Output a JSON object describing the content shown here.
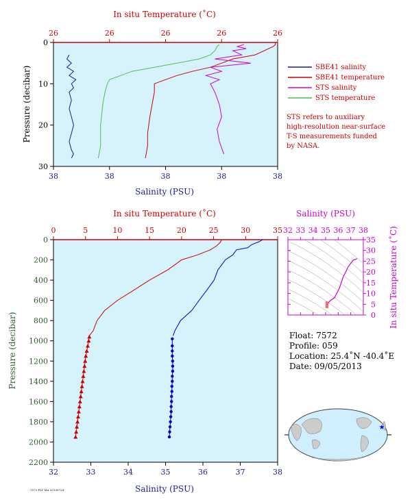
{
  "chart_data": [
    {
      "id": "near_surface",
      "type": "line",
      "top_axis_label": "In situ Temperature (˚C)",
      "top_ticks": [
        "26",
        "26",
        "26",
        "26",
        "26"
      ],
      "bottom_axis_label": "Salinity (PSU)",
      "bottom_ticks": [
        "38",
        "38",
        "38",
        "38",
        "38"
      ],
      "ylabel": "Pressure (decibar)",
      "y_ticks": [
        "0",
        "10",
        "20",
        "30"
      ],
      "ylim": [
        0,
        30
      ],
      "legend": [
        {
          "name": "SBE41 salinity",
          "color": "#1a1a99"
        },
        {
          "name": "SBE41 temperature",
          "color": "#cc0000"
        },
        {
          "name": "STS salinity",
          "color": "#cc00cc"
        },
        {
          "name": "STS temperature",
          "color": "#55bb55"
        }
      ],
      "note": [
        "STS refers to auxiliary",
        "high-resolution near-surface",
        "T-S measurements funded",
        "by NASA."
      ],
      "series": [
        {
          "name": "SBE41 salinity",
          "x_frac": [
            0.07,
            0.06,
            0.08,
            0.06,
            0.09,
            0.07,
            0.1,
            0.08,
            0.09,
            0.07,
            0.08,
            0.07,
            0.08,
            0.09,
            0.08,
            0.07,
            0.08,
            0.09,
            0.08
          ],
          "y": [
            3,
            4,
            5,
            6,
            7,
            8,
            9,
            10,
            11,
            12,
            14,
            16,
            18,
            20,
            22,
            24,
            26,
            27,
            28
          ]
        },
        {
          "name": "SBE41 temperature",
          "x_frac": [
            0.99,
            0.99,
            0.98,
            0.9,
            0.8,
            0.75,
            0.7,
            0.62,
            0.55,
            0.5,
            0.45,
            0.45,
            0.44,
            0.43,
            0.42,
            0.42,
            0.41
          ],
          "y": [
            0,
            0.5,
            1,
            3,
            4,
            5,
            6,
            7,
            8,
            9,
            10,
            12,
            15,
            18,
            22,
            25,
            28
          ]
        },
        {
          "name": "STS salinity",
          "x_frac": [
            0.85,
            0.82,
            0.86,
            0.8,
            0.84,
            0.72,
            0.88,
            0.7,
            0.75,
            0.68,
            0.74,
            0.7,
            0.72,
            0.74,
            0.75,
            0.73,
            0.74,
            0.76
          ],
          "y": [
            0.5,
            1,
            1.5,
            2,
            3,
            4,
            5,
            6,
            7,
            8,
            9,
            10,
            12,
            15,
            18,
            21,
            24,
            27
          ]
        },
        {
          "name": "STS temperature",
          "x_frac": [
            0.74,
            0.73,
            0.72,
            0.7,
            0.65,
            0.55,
            0.45,
            0.35,
            0.3,
            0.25,
            0.24,
            0.23,
            0.22,
            0.21,
            0.21,
            0.2
          ],
          "y": [
            0.5,
            1,
            2,
            3,
            4,
            5,
            6,
            7,
            8,
            9,
            10,
            12,
            15,
            20,
            25,
            28
          ]
        }
      ]
    },
    {
      "id": "full_profile",
      "type": "line",
      "top_axis_label": "In situ Temperature (˚C)",
      "top_ticks": [
        "0",
        "5",
        "10",
        "15",
        "20",
        "25",
        "30",
        "35"
      ],
      "xlim_temperature": [
        0,
        35
      ],
      "bottom_axis_label": "Salinity (PSU)",
      "bottom_ticks": [
        "32",
        "33",
        "34",
        "35",
        "36",
        "37",
        "38"
      ],
      "xlim_salinity": [
        32,
        38
      ],
      "ylabel": "Pressure (decibar)",
      "y_ticks": [
        "0",
        "200",
        "400",
        "600",
        "800",
        "1000",
        "1200",
        "1400",
        "1600",
        "1800",
        "2000",
        "2200"
      ],
      "ylim": [
        0,
        2200
      ],
      "series": [
        {
          "name": "Temperature",
          "color": "#cc0000",
          "pressure": [
            0,
            10,
            30,
            60,
            100,
            150,
            200,
            300,
            400,
            500,
            600,
            700,
            800,
            900,
            950
          ],
          "temperature": [
            26.2,
            26.2,
            26.0,
            25.5,
            24.5,
            22.5,
            20.0,
            17.8,
            15.0,
            12.5,
            10.0,
            8.0,
            6.8,
            6.2,
            5.6
          ]
        },
        {
          "name": "Temperature markers",
          "color": "#cc0000",
          "marker": "triangle",
          "pressure": [
            960,
            1000,
            1050,
            1100,
            1150,
            1200,
            1250,
            1300,
            1350,
            1400,
            1450,
            1500,
            1550,
            1600,
            1650,
            1700,
            1750,
            1800,
            1850,
            1900,
            1950
          ],
          "temperature": [
            5.6,
            5.5,
            5.35,
            5.2,
            5.05,
            4.95,
            4.85,
            4.75,
            4.65,
            4.55,
            4.45,
            4.35,
            4.25,
            4.15,
            4.05,
            3.95,
            3.85,
            3.75,
            3.65,
            3.55,
            3.45
          ]
        },
        {
          "name": "Salinity",
          "color": "#0000cc",
          "pressure": [
            0,
            20,
            50,
            80,
            100,
            150,
            200,
            300,
            400,
            500,
            600,
            700,
            800,
            900,
            950
          ],
          "salinity": [
            37.6,
            37.5,
            37.3,
            37.2,
            36.9,
            36.8,
            36.6,
            36.4,
            36.3,
            36.1,
            35.9,
            35.7,
            35.4,
            35.25,
            35.2
          ]
        },
        {
          "name": "Salinity markers",
          "color": "#0000cc",
          "marker": "dot",
          "pressure": [
            980,
            1050,
            1100,
            1150,
            1200,
            1250,
            1300,
            1350,
            1400,
            1450,
            1500,
            1550,
            1600,
            1650,
            1700,
            1750,
            1800,
            1850,
            1900,
            1950
          ],
          "salinity": [
            35.18,
            35.18,
            35.18,
            35.18,
            35.19,
            35.19,
            35.19,
            35.18,
            35.18,
            35.17,
            35.17,
            35.16,
            35.16,
            35.15,
            35.15,
            35.14,
            35.13,
            35.12,
            35.11,
            35.1
          ]
        }
      ]
    },
    {
      "id": "ts_diagram",
      "type": "scatter",
      "top_axis_label": "Salinity (PSU)",
      "x_ticks": [
        "32",
        "33",
        "34",
        "35",
        "36",
        "37",
        "38"
      ],
      "xlim": [
        32,
        38
      ],
      "right_axis_label": "In situ Temperature (˚C)",
      "y_ticks": [
        "0",
        "5",
        "10",
        "15",
        "20",
        "25",
        "30",
        "35"
      ],
      "ylim": [
        0,
        35
      ],
      "series": [
        {
          "name": "T-S",
          "color": "#cc00cc",
          "salinity": [
            35.1,
            35.15,
            35.2,
            35.4,
            35.7,
            36.1,
            36.4,
            36.6,
            36.8,
            37.2,
            37.5
          ],
          "temperature": [
            3.5,
            4.5,
            5.6,
            6.8,
            8.0,
            12.5,
            17.8,
            20.0,
            22.5,
            25.5,
            26.2
          ]
        }
      ]
    }
  ],
  "float_info": {
    "float": "Float:  7572",
    "profile": "Profile:  059",
    "location": "Location:  25.4˚N  -40.4˚E",
    "date": "Date:  09/05/2013"
  },
  "footer_note": "7572 FLT MA 20130724",
  "map": {
    "marker_color": "#0000ff",
    "land": "#cccccc",
    "ocean": "#cfefff"
  }
}
